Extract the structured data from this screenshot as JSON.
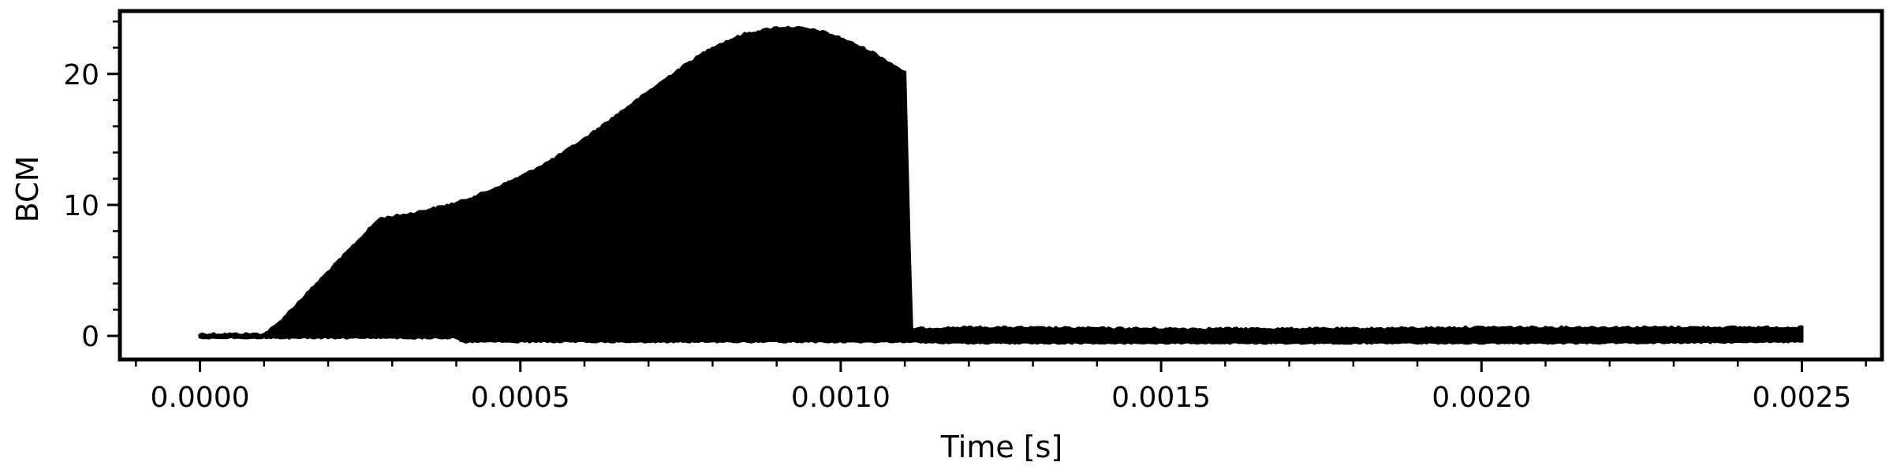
{
  "chart_data": {
    "type": "area",
    "title": "",
    "xlabel": "Time [s]",
    "ylabel": "BCM",
    "xlim": [
      -0.000125,
      0.002625
    ],
    "ylim": [
      -1.8,
      24.8
    ],
    "grid": false,
    "x_ticks": [
      0.0,
      0.0005,
      0.001,
      0.0015,
      0.002,
      0.0025
    ],
    "x_tick_labels": [
      "0.0000",
      "0.0005",
      "0.0010",
      "0.0015",
      "0.0020",
      "0.0025"
    ],
    "y_ticks": [
      0,
      10,
      20
    ],
    "y_tick_labels": [
      "0",
      "10",
      "20"
    ],
    "color": "#000000",
    "series": [
      {
        "upper_envelope": {
          "x": [
            0.0,
            0.0001,
            0.00012,
            0.00028,
            0.00033,
            0.0004,
            0.00045,
            0.0005,
            0.00055,
            0.0006,
            0.00065,
            0.0007,
            0.00075,
            0.0008,
            0.00085,
            0.0009,
            0.00093,
            0.00097,
            0.001,
            0.00105,
            0.0011,
            0.00111,
            0.0012,
            0.0015,
            0.0018,
            0.002,
            0.0022,
            0.0025
          ],
          "y": [
            0.1,
            0.1,
            0.8,
            8.9,
            9.3,
            10.1,
            11.0,
            12.1,
            13.4,
            15.0,
            16.8,
            18.6,
            20.4,
            22.0,
            23.0,
            23.5,
            23.5,
            23.2,
            22.7,
            21.6,
            20.1,
            0.5,
            0.6,
            0.5,
            0.5,
            0.6,
            0.6,
            0.6
          ]
        },
        "lower_envelope": {
          "x": [
            0.0,
            0.0004,
            0.00041,
            0.0006,
            0.0008,
            0.0011,
            0.0012,
            0.0015,
            0.0018,
            0.002,
            0.0022,
            0.0025
          ],
          "y": [
            -0.1,
            -0.1,
            -0.4,
            -0.4,
            -0.4,
            -0.4,
            -0.5,
            -0.5,
            -0.5,
            -0.5,
            -0.5,
            -0.4
          ]
        }
      }
    ]
  }
}
